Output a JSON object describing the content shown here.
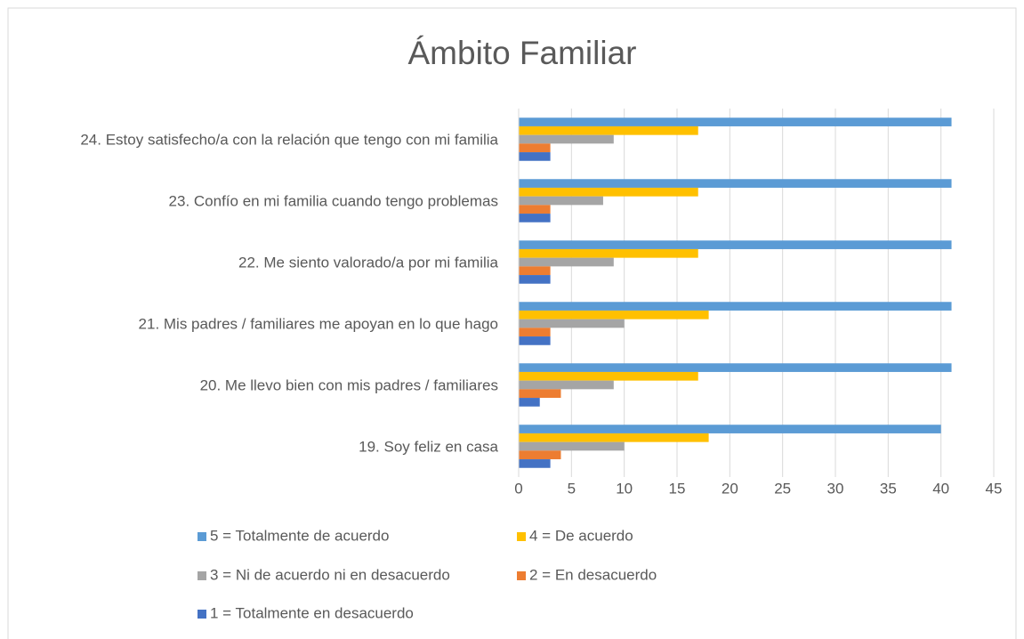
{
  "chart_data": {
    "type": "bar",
    "orientation": "horizontal",
    "title": "Ámbito Familiar",
    "categories": [
      "19. Soy feliz en casa",
      "20. Me llevo bien con mis padres / familiares",
      "21. Mis padres / familiares me apoyan en lo que hago",
      "22. Me siento valorado/a por mi familia",
      "23. Confío en mi familia cuando tengo problemas",
      "24. Estoy satisfecho/a con la relación que tengo con mi familia"
    ],
    "series": [
      {
        "name": "5 = Totalmente de acuerdo",
        "color": "#5b9bd5",
        "values": [
          40,
          41,
          41,
          41,
          41,
          41
        ]
      },
      {
        "name": "4 = De acuerdo",
        "color": "#ffc000",
        "values": [
          18,
          17,
          18,
          17,
          17,
          17
        ]
      },
      {
        "name": "3 = Ni de acuerdo ni en desacuerdo",
        "color": "#a5a5a5",
        "values": [
          10,
          9,
          10,
          9,
          8,
          9
        ]
      },
      {
        "name": "2 = En desacuerdo",
        "color": "#ed7d31",
        "values": [
          4,
          4,
          3,
          3,
          3,
          3
        ]
      },
      {
        "name": "1 = Totalmente en desacuerdo",
        "color": "#4472c4",
        "values": [
          3,
          2,
          3,
          3,
          3,
          3
        ]
      }
    ],
    "xlim": [
      0,
      45
    ],
    "xticks": [
      0,
      5,
      10,
      15,
      20,
      25,
      30,
      35,
      40,
      45
    ],
    "grid": true,
    "legend": "bottom"
  }
}
